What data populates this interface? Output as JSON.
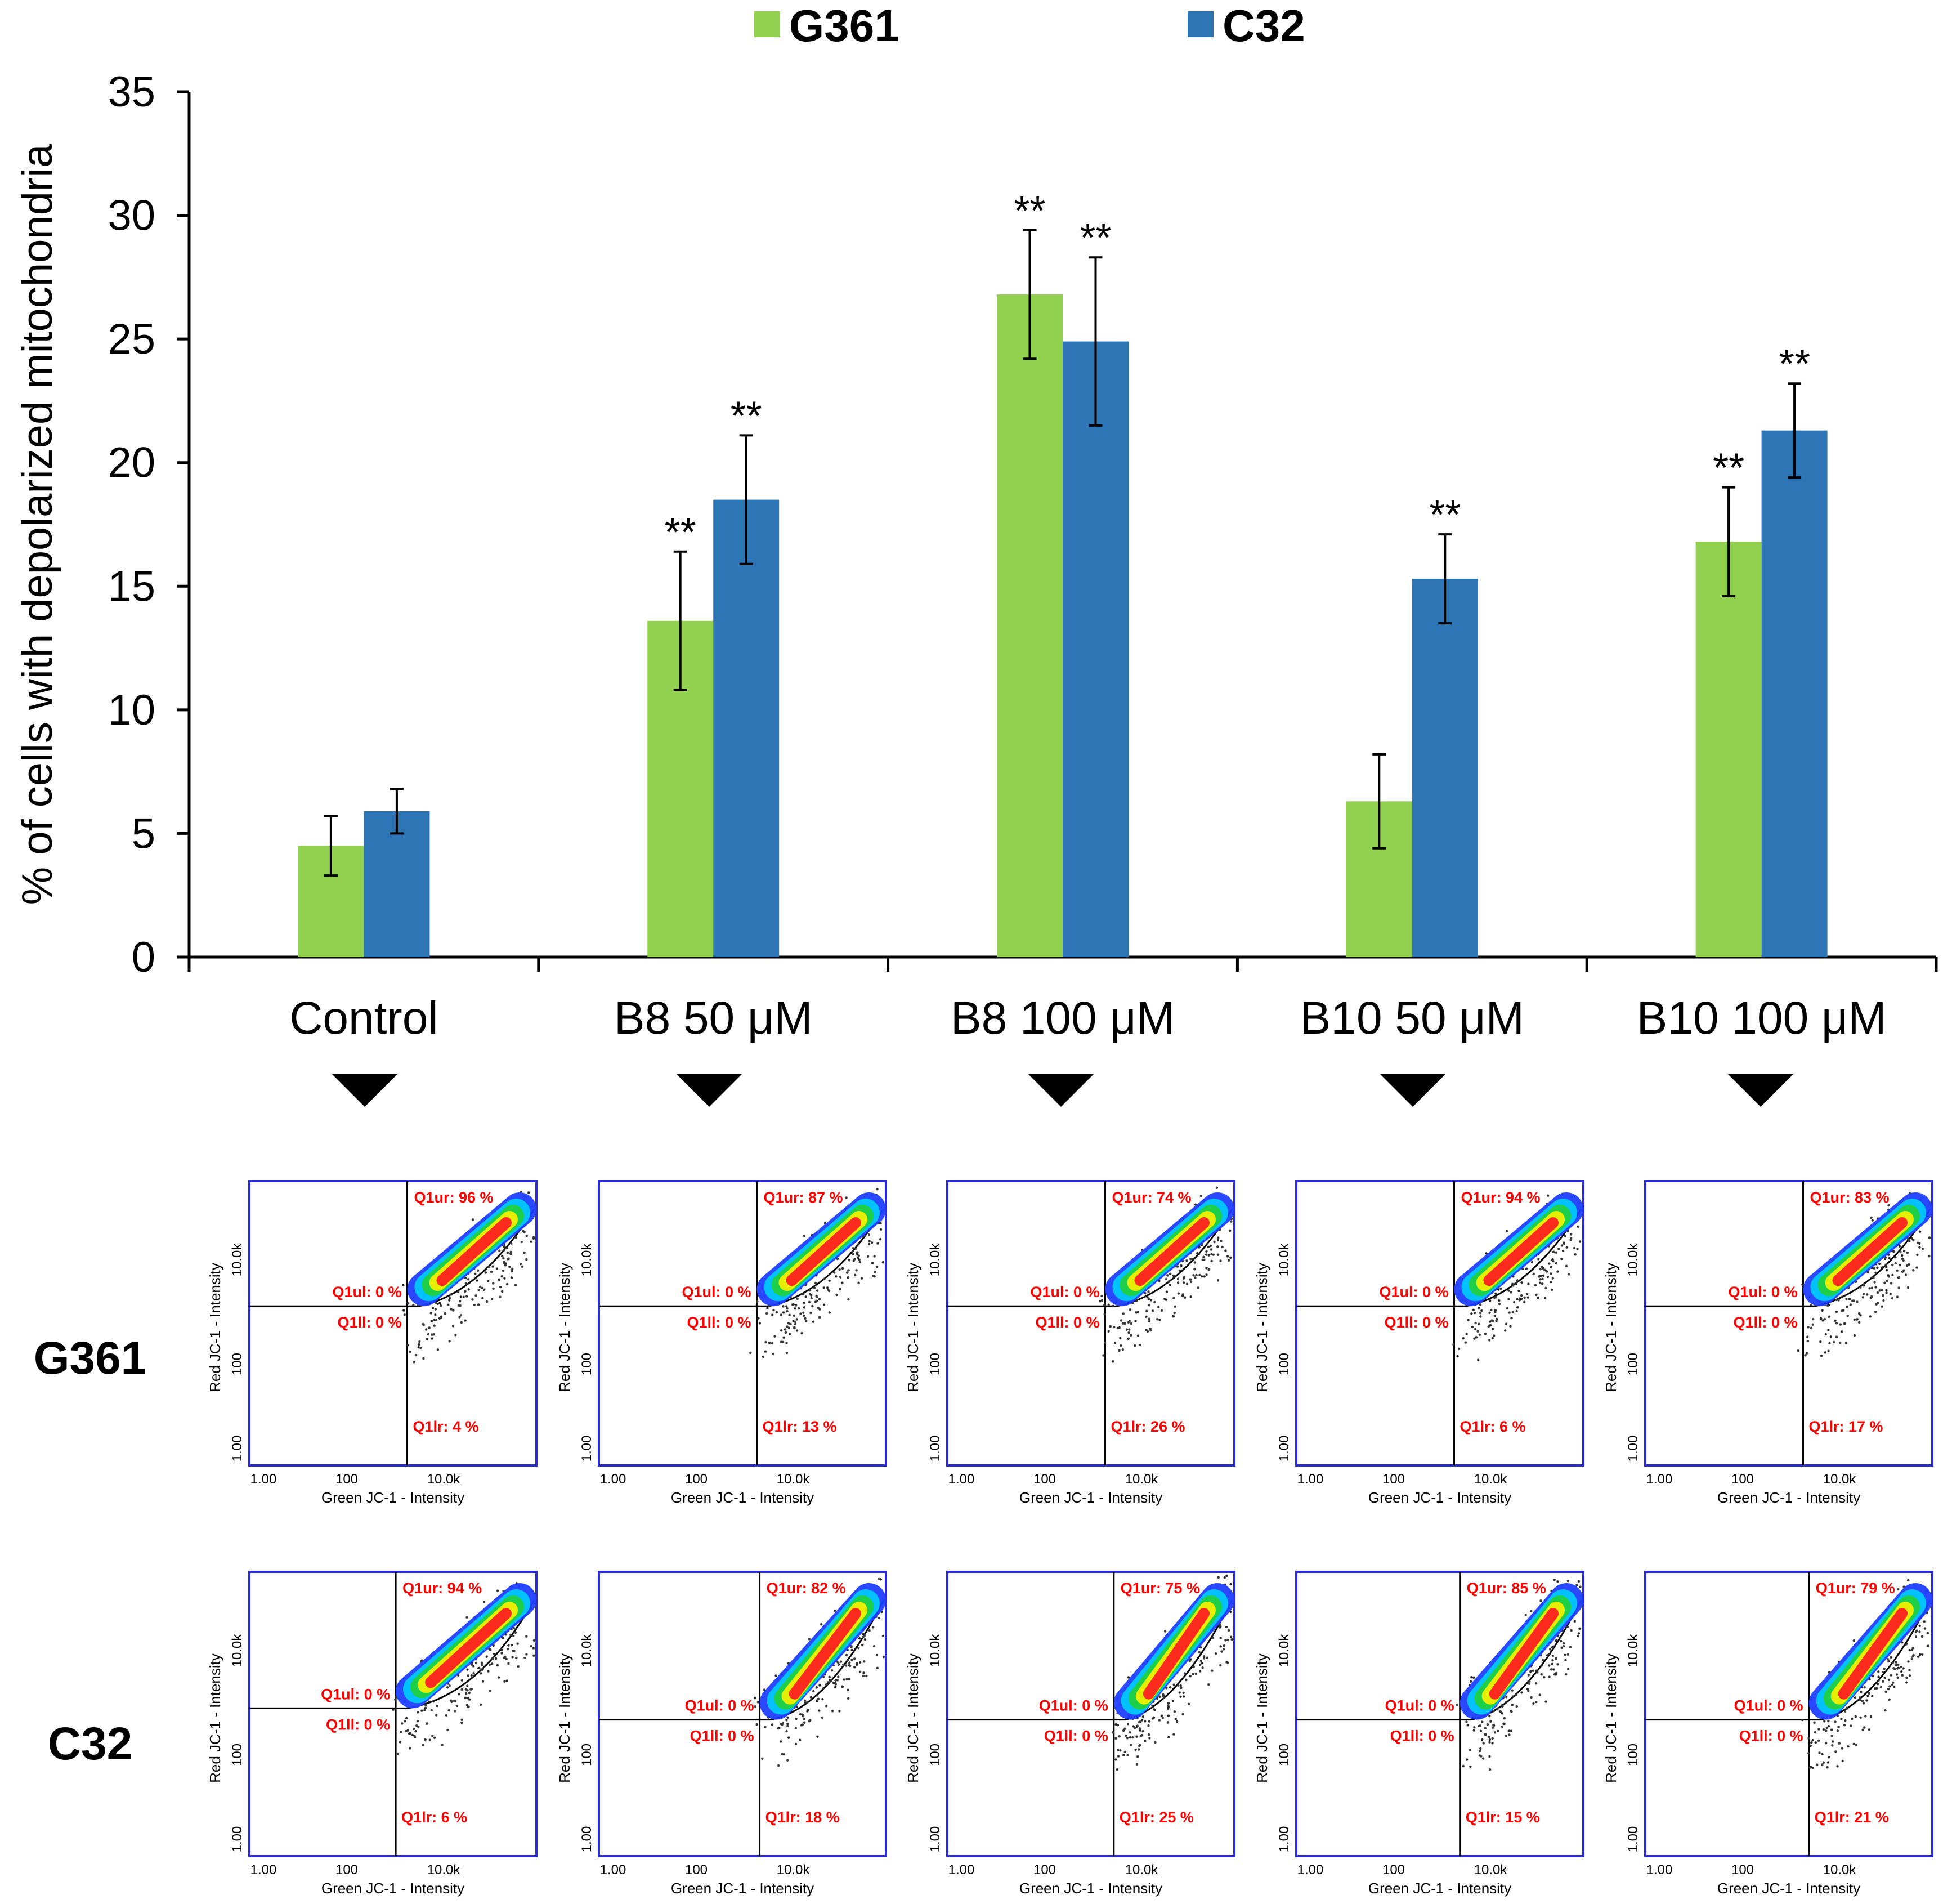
{
  "chart_data": [
    {
      "type": "bar",
      "title": "",
      "xlabel": "",
      "ylabel": "% of cells with depolarized mitochondria",
      "ylim": [
        0,
        35
      ],
      "yticks": [
        0,
        5,
        10,
        15,
        20,
        25,
        30,
        35
      ],
      "ytick_labels": [
        "0",
        "5",
        "10",
        "15",
        "20",
        "25",
        "30",
        "35"
      ],
      "grid": false,
      "legend_position": "top",
      "categories": [
        "Control",
        "B8 50 μM",
        "B8 100 μM",
        "B10 50 μM",
        "B10 100 μM"
      ],
      "series": [
        {
          "name": "G361",
          "color": "#92d050",
          "values": [
            4.5,
            13.6,
            26.8,
            6.3,
            16.8
          ],
          "errors": [
            1.2,
            2.8,
            2.6,
            1.9,
            2.2
          ],
          "significance": [
            "",
            "**",
            "**",
            "",
            "**"
          ]
        },
        {
          "name": "C32",
          "color": "#2e75b6",
          "values": [
            5.9,
            18.5,
            24.9,
            15.3,
            21.3
          ],
          "errors": [
            0.9,
            2.6,
            3.4,
            1.8,
            1.9
          ],
          "significance": [
            "",
            "**",
            "**",
            "**",
            "**"
          ]
        }
      ]
    },
    {
      "type": "scatter",
      "description_label": "flow cytometry JC-1 quadrant plots",
      "xlabel": "Green JC-1 - Intensity",
      "ylabel": "Red JC-1 - Intensity",
      "xtick_labels": [
        "1.00",
        "100",
        "10.0k"
      ],
      "ytick_labels": [
        "1.00",
        "100",
        "10.0k"
      ],
      "columns": [
        "Control",
        "B8 50 μM",
        "B8 100 μM",
        "B10 50 μM",
        "B10 100 μM"
      ],
      "rows": [
        {
          "name": "G361",
          "panels": [
            {
              "ur": "Q1ur: 96 %",
              "ul": "Q1ul: 0 %",
              "ll": "Q1ll: 0 %",
              "lr": "Q1lr: 4 %"
            },
            {
              "ur": "Q1ur: 87 %",
              "ul": "Q1ul: 0 %",
              "ll": "Q1ll: 0 %",
              "lr": "Q1lr: 13 %"
            },
            {
              "ur": "Q1ur: 74 %",
              "ul": "Q1ul: 0 %",
              "ll": "Q1ll: 0 %",
              "lr": "Q1lr: 26 %"
            },
            {
              "ur": "Q1ur: 94 %",
              "ul": "Q1ul: 0 %",
              "ll": "Q1ll: 0 %",
              "lr": "Q1lr: 6 %"
            },
            {
              "ur": "Q1ur: 83 %",
              "ul": "Q1ul: 0 %",
              "ll": "Q1ll: 0 %",
              "lr": "Q1lr: 17 %"
            }
          ]
        },
        {
          "name": "C32",
          "panels": [
            {
              "ur": "Q1ur: 94 %",
              "ul": "Q1ul: 0 %",
              "ll": "Q1ll: 0 %",
              "lr": "Q1lr: 6 %"
            },
            {
              "ur": "Q1ur: 82 %",
              "ul": "Q1ul: 0 %",
              "ll": "Q1ll: 0 %",
              "lr": "Q1lr: 18 %"
            },
            {
              "ur": "Q1ur: 75 %",
              "ul": "Q1ul: 0 %",
              "ll": "Q1ll: 0 %",
              "lr": "Q1lr: 25 %"
            },
            {
              "ur": "Q1ur: 85 %",
              "ul": "Q1ul: 0 %",
              "ll": "Q1ll: 0 %",
              "lr": "Q1lr: 15 %"
            },
            {
              "ur": "Q1ur: 79 %",
              "ul": "Q1ul: 0 %",
              "ll": "Q1ll: 0 %",
              "lr": "Q1lr: 21 %"
            }
          ]
        }
      ]
    }
  ]
}
